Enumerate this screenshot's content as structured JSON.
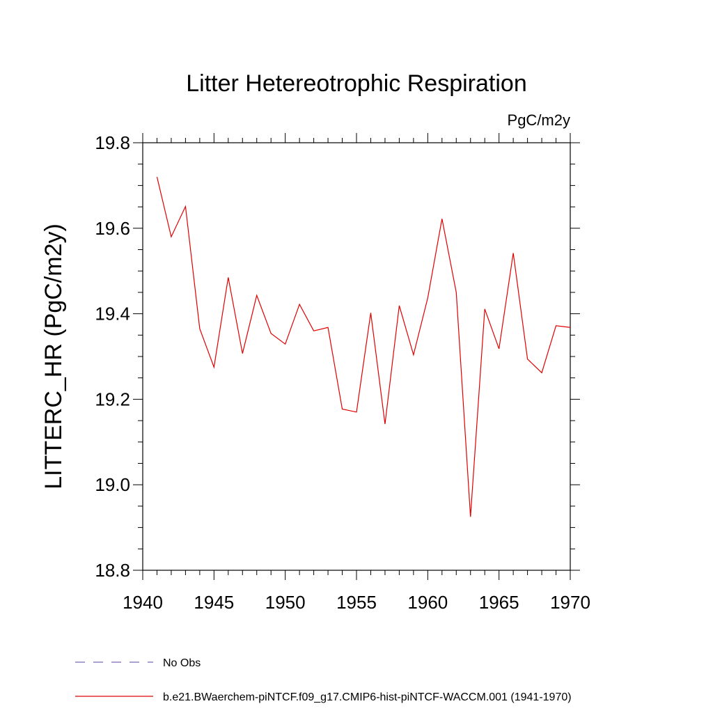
{
  "chart_data": {
    "type": "line",
    "title": "Litter Hetereotrophic Respiration",
    "units_label": "PgC/m2y",
    "ylabel": "LITTERC_HR  (PgC/m2y)",
    "xlabel": "",
    "xlim": [
      1940,
      1970
    ],
    "ylim": [
      18.8,
      19.8
    ],
    "x_ticks": [
      1940,
      1945,
      1950,
      1955,
      1960,
      1965,
      1970
    ],
    "x_tick_labels": [
      "1940",
      "1945",
      "1950",
      "1955",
      "1960",
      "1965",
      "1970"
    ],
    "y_ticks": [
      18.8,
      19.0,
      19.2,
      19.4,
      19.6,
      19.8
    ],
    "y_tick_labels": [
      "18.8",
      "19.0",
      "19.2",
      "19.4",
      "19.6",
      "19.8"
    ],
    "grid": false,
    "legend_position": "bottom-left",
    "series": [
      {
        "name": "b.e21.BWaerchem-piNTCF.f09_g17.CMIP6-hist-piNTCF-WACCM.001 (1941-1970)",
        "color": "#e00000",
        "style": "solid",
        "x": [
          1941,
          1942,
          1943,
          1944,
          1945,
          1946,
          1947,
          1948,
          1949,
          1950,
          1951,
          1952,
          1953,
          1954,
          1955,
          1956,
          1957,
          1958,
          1959,
          1960,
          1961,
          1962,
          1963,
          1964,
          1965,
          1966,
          1967,
          1968,
          1969,
          1970
        ],
        "y": [
          19.72,
          19.58,
          19.651,
          19.365,
          19.275,
          19.485,
          19.307,
          19.443,
          19.354,
          19.329,
          19.422,
          19.36,
          19.368,
          19.177,
          19.17,
          19.402,
          19.142,
          19.419,
          19.304,
          19.437,
          19.622,
          19.45,
          18.925,
          19.411,
          19.318,
          19.542,
          19.294,
          19.262,
          19.372,
          19.368
        ]
      }
    ],
    "legend": [
      {
        "label": "No Obs",
        "color": "#7b68b8",
        "style": "dashed"
      },
      {
        "label": "b.e21.BWaerchem-piNTCF.f09_g17.CMIP6-hist-piNTCF-WACCM.001 (1941-1970)",
        "color": "#e00000",
        "style": "solid"
      }
    ]
  }
}
